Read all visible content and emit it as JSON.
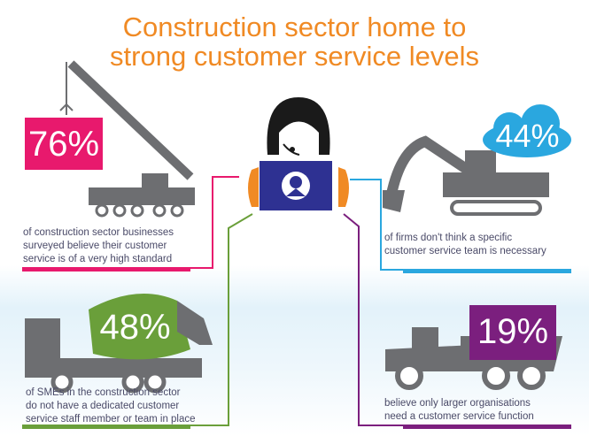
{
  "title": {
    "line1": "Construction sector home to",
    "line2": "strong customer service levels"
  },
  "stats": [
    {
      "value": "76%",
      "caption": [
        "of construction sector businesses",
        "surveyed believe their customer",
        "service is of a very high standard"
      ],
      "color": "#e8196d",
      "icon": "crane-icon"
    },
    {
      "value": "44%",
      "caption": [
        "of firms don't think a specific",
        "customer service team is necessary"
      ],
      "color": "#2aa7df",
      "icon": "excavator-icon"
    },
    {
      "value": "48%",
      "caption": [
        "of SMEs in the construction sector",
        "do not have a dedicated customer",
        "service staff member or team in place"
      ],
      "color": "#6a9f3a",
      "icon": "cement-mixer-icon"
    },
    {
      "value": "19%",
      "caption": [
        "believe only larger organisations",
        "need a customer service function"
      ],
      "color": "#7b1f7e",
      "icon": "dump-truck-icon"
    }
  ],
  "colors": {
    "title": "#f08a24",
    "laptop": "#2e3192",
    "vehicle": "#6d6e71"
  }
}
